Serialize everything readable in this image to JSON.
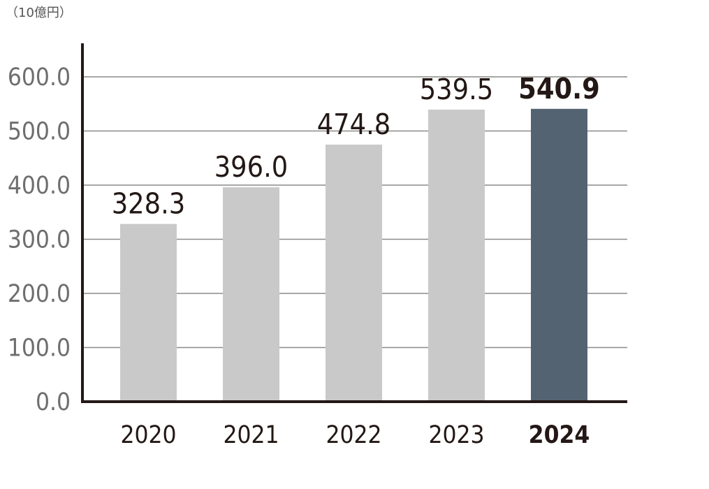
{
  "unit_label": "（10億円）",
  "colors": {
    "bar": "#c9c9c9",
    "bar_highlight": "#546372",
    "axis": "#231815",
    "grid": "#8a8a8a",
    "tick_text": "#6e6e6e",
    "label_text": "#231815"
  },
  "chart_data": {
    "type": "bar",
    "title": "",
    "xlabel": "",
    "ylabel": "（10億円）",
    "categories": [
      "2020",
      "2021",
      "2022",
      "2023",
      "2024"
    ],
    "values": [
      328.3,
      396.0,
      474.8,
      539.5,
      540.9
    ],
    "value_labels": [
      "328.3",
      "396.0",
      "474.8",
      "539.5",
      "540.9"
    ],
    "highlight_index": 4,
    "ylim": [
      0,
      600
    ],
    "yticks": [
      0,
      100,
      200,
      300,
      400,
      500,
      600
    ],
    "ytick_labels": [
      "0.0",
      "100.0",
      "200.0",
      "300.0",
      "400.0",
      "500.0",
      "600.0"
    ],
    "grid": true,
    "legend": "none"
  }
}
